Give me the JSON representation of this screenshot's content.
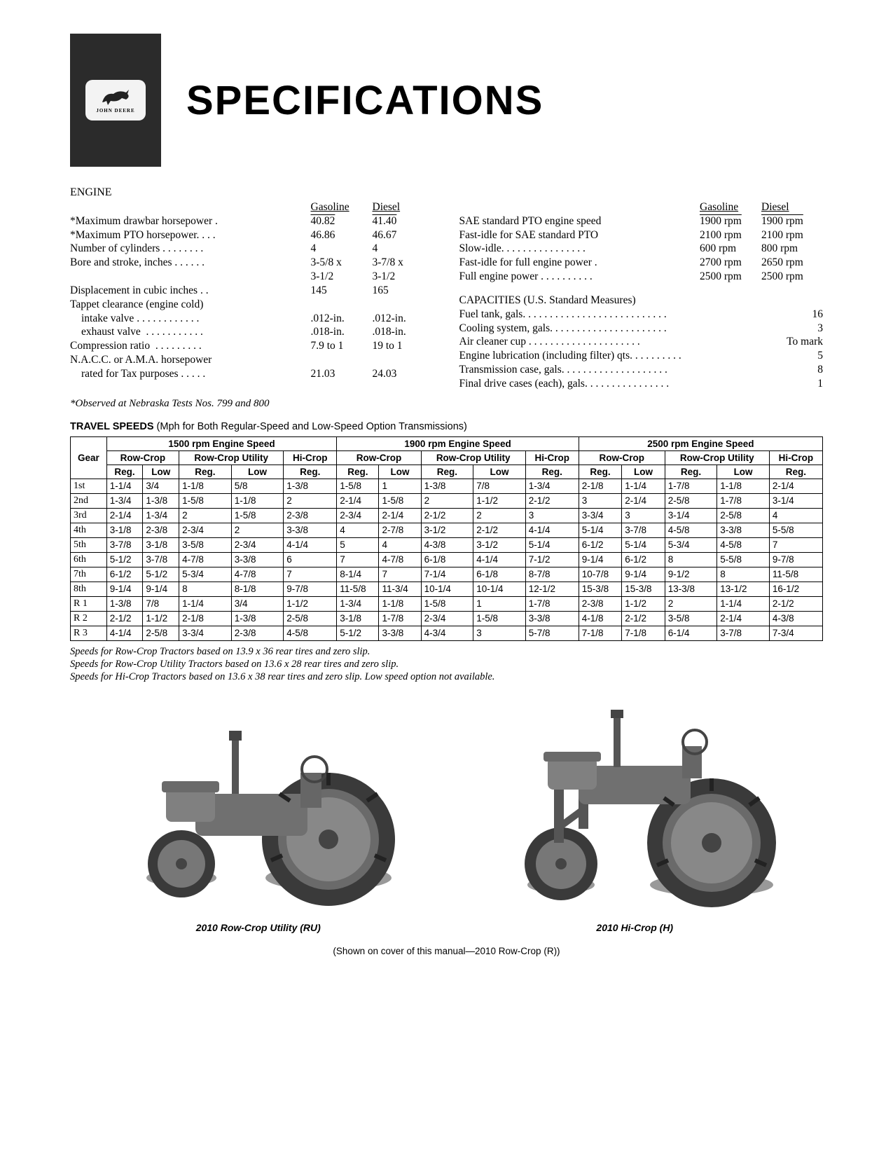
{
  "brand": "JOHN DEERE",
  "headline": "SPECIFICATIONS",
  "engine": {
    "heading": "ENGINE",
    "col_gas": "Gasoline",
    "col_die": "Diesel",
    "rows": [
      {
        "label": "*Maximum drawbar horsepower .",
        "gas": "40.82",
        "die": "41.40",
        "underline": true
      },
      {
        "label": "*Maximum PTO horsepower. . . .",
        "gas": "46.86",
        "die": "46.67"
      },
      {
        "label": "Number of cylinders . . . . . . . .",
        "gas": "4",
        "die": "4"
      },
      {
        "label": "Bore and stroke, inches . . . . . .",
        "gas": "3-5/8 x",
        "die": "3-7/8 x"
      },
      {
        "label": "",
        "gas": "3-1/2",
        "die": "3-1/2"
      },
      {
        "label": "Displacement in cubic inches . .",
        "gas": "145",
        "die": "165"
      },
      {
        "label": "Tappet clearance (engine cold)",
        "gas": "",
        "die": ""
      },
      {
        "label": "intake valve . . . . . . . . . . . .",
        "gas": ".012-in.",
        "die": ".012-in.",
        "indent": true
      },
      {
        "label": "exhaust valve  . . . . . . . . . . .",
        "gas": ".018-in.",
        "die": ".018-in.",
        "indent": true
      },
      {
        "label": "Compression ratio  . . . . . . . . .",
        "gas": "7.9 to 1",
        "die": "19 to 1"
      },
      {
        "label": "N.A.C.C. or A.M.A. horsepower",
        "gas": "",
        "die": ""
      },
      {
        "label": "rated for Tax purposes . . . . .",
        "gas": "21.03",
        "die": "24.03",
        "indent": true
      }
    ],
    "footnote": "*Observed at Nebraska Tests Nos. 799 and 800"
  },
  "right_specs": {
    "col_gas": "Gasoline",
    "col_die": "Diesel",
    "rows": [
      {
        "label": "SAE standard PTO engine speed",
        "gas": "1900 rpm",
        "die": "1900 rpm",
        "underline": true
      },
      {
        "label": "Fast-idle for SAE standard PTO",
        "gas": "2100 rpm",
        "die": "2100 rpm"
      },
      {
        "label": "Slow-idle. . . . . . . . . . . . . . . .",
        "gas": "600 rpm",
        "die": "800 rpm"
      },
      {
        "label": "Fast-idle for full engine power .",
        "gas": "2700 rpm",
        "die": "2650 rpm"
      },
      {
        "label": "Full engine power . . . . . . . . . .",
        "gas": "2500 rpm",
        "die": "2500 rpm"
      }
    ]
  },
  "capacities": {
    "heading": "CAPACITIES (U.S. Standard Measures)",
    "rows": [
      {
        "label": "Fuel tank, gals. . . . . . . . . . . . . . . . . . . . . . . . . . .",
        "val": "16"
      },
      {
        "label": "Cooling system, gals. . . . . . . . . . . . . . . . . . . . . .",
        "val": "3"
      },
      {
        "label": "Air cleaner cup . . . . . . . . . . . . . . . . . . . . .",
        "val": "To mark"
      },
      {
        "label": "Engine lubrication (including filter) qts. . . . . . . . . .",
        "val": "5"
      },
      {
        "label": "Transmission case, gals. . . . . . . . . . . . . . . . . . . .",
        "val": "8"
      },
      {
        "label": "Final drive cases (each), gals. . . . . . . . . . . . . . . .",
        "val": "1"
      }
    ]
  },
  "speeds": {
    "title_bold": "TRAVEL SPEEDS",
    "title_rest": " (Mph for Both Regular-Speed and Low-Speed Option Transmissions)",
    "top_headers": [
      "1500 rpm Engine Speed",
      "1900 rpm Engine Speed",
      "2500 rpm Engine Speed"
    ],
    "sub_groups_1500": [
      "Row-Crop",
      "Row-Crop Utility",
      "Hi-Crop"
    ],
    "sub_groups_1900": [
      "Row-Crop",
      "Row-Crop Utility",
      "Hi-Crop"
    ],
    "sub_groups_2500": [
      "Row-Crop",
      "Row-Crop Utility",
      "Hi-Crop"
    ],
    "leaf": [
      "Reg.",
      "Low",
      "Reg.",
      "Low",
      "Reg.",
      "Reg.",
      "Low",
      "Reg.",
      "Low",
      "Reg.",
      "Reg.",
      "Low",
      "Reg.",
      "Low",
      "Reg."
    ],
    "gear_label": "Gear",
    "rows": [
      {
        "g": "1st",
        "c": [
          "1-1/4",
          "3/4",
          "1-1/8",
          "5/8",
          "1-3/8",
          "1-5/8",
          "1",
          "1-3/8",
          "7/8",
          "1-3/4",
          "2-1/8",
          "1-1/4",
          "1-7/8",
          "1-1/8",
          "2-1/4"
        ]
      },
      {
        "g": "2nd",
        "c": [
          "1-3/4",
          "1-3/8",
          "1-5/8",
          "1-1/8",
          "2",
          "2-1/4",
          "1-5/8",
          "2",
          "1-1/2",
          "2-1/2",
          "3",
          "2-1/4",
          "2-5/8",
          "1-7/8",
          "3-1/4"
        ]
      },
      {
        "g": "3rd",
        "c": [
          "2-1/4",
          "1-3/4",
          "2",
          "1-5/8",
          "2-3/8",
          "2-3/4",
          "2-1/4",
          "2-1/2",
          "2",
          "3",
          "3-3/4",
          "3",
          "3-1/4",
          "2-5/8",
          "4"
        ]
      },
      {
        "g": "4th",
        "c": [
          "3-1/8",
          "2-3/8",
          "2-3/4",
          "2",
          "3-3/8",
          "4",
          "2-7/8",
          "3-1/2",
          "2-1/2",
          "4-1/4",
          "5-1/4",
          "3-7/8",
          "4-5/8",
          "3-3/8",
          "5-5/8"
        ]
      },
      {
        "g": "5th",
        "c": [
          "3-7/8",
          "3-1/8",
          "3-5/8",
          "2-3/4",
          "4-1/4",
          "5",
          "4",
          "4-3/8",
          "3-1/2",
          "5-1/4",
          "6-1/2",
          "5-1/4",
          "5-3/4",
          "4-5/8",
          "7"
        ]
      },
      {
        "g": "6th",
        "c": [
          "5-1/2",
          "3-7/8",
          "4-7/8",
          "3-3/8",
          "6",
          "7",
          "4-7/8",
          "6-1/8",
          "4-1/4",
          "7-1/2",
          "9-1/4",
          "6-1/2",
          "8",
          "5-5/8",
          "9-7/8"
        ]
      },
      {
        "g": "7th",
        "c": [
          "6-1/2",
          "5-1/2",
          "5-3/4",
          "4-7/8",
          "7",
          "8-1/4",
          "7",
          "7-1/4",
          "6-1/8",
          "8-7/8",
          "10-7/8",
          "9-1/4",
          "9-1/2",
          "8",
          "11-5/8"
        ]
      },
      {
        "g": "8th",
        "c": [
          "9-1/4",
          "9-1/4",
          "8",
          "8-1/8",
          "9-7/8",
          "11-5/8",
          "11-3/4",
          "10-1/4",
          "10-1/4",
          "12-1/2",
          "15-3/8",
          "15-3/8",
          "13-3/8",
          "13-1/2",
          "16-1/2"
        ]
      },
      {
        "g": "R 1",
        "c": [
          "1-3/8",
          "7/8",
          "1-1/4",
          "3/4",
          "1-1/2",
          "1-3/4",
          "1-1/8",
          "1-5/8",
          "1",
          "1-7/8",
          "2-3/8",
          "1-1/2",
          "2",
          "1-1/4",
          "2-1/2"
        ]
      },
      {
        "g": "R 2",
        "c": [
          "2-1/2",
          "1-1/2",
          "2-1/8",
          "1-3/8",
          "2-5/8",
          "3-1/8",
          "1-7/8",
          "2-3/4",
          "1-5/8",
          "3-3/8",
          "4-1/8",
          "2-1/2",
          "3-5/8",
          "2-1/4",
          "4-3/8"
        ]
      },
      {
        "g": "R 3",
        "c": [
          "4-1/4",
          "2-5/8",
          "3-3/4",
          "2-3/8",
          "4-5/8",
          "5-1/2",
          "3-3/8",
          "4-3/4",
          "3",
          "5-7/8",
          "7-1/8",
          "7-1/8",
          "6-1/4",
          "3-7/8",
          "7-3/4"
        ]
      }
    ],
    "notes": [
      "Speeds for Row-Crop Tractors based on 13.9 x 36 rear tires and zero slip.",
      "Speeds for Row-Crop Utility Tractors based on 13.6 x 28 rear tires and zero slip.",
      "Speeds for Hi-Crop Tractors based on 13.6 x 38 rear tires and zero slip. Low speed option not available."
    ]
  },
  "captions": {
    "left": "2010 Row-Crop Utility (RU)",
    "right": "2010 Hi-Crop (H)",
    "cover": "(Shown on cover of this manual—2010 Row-Crop (R))"
  }
}
